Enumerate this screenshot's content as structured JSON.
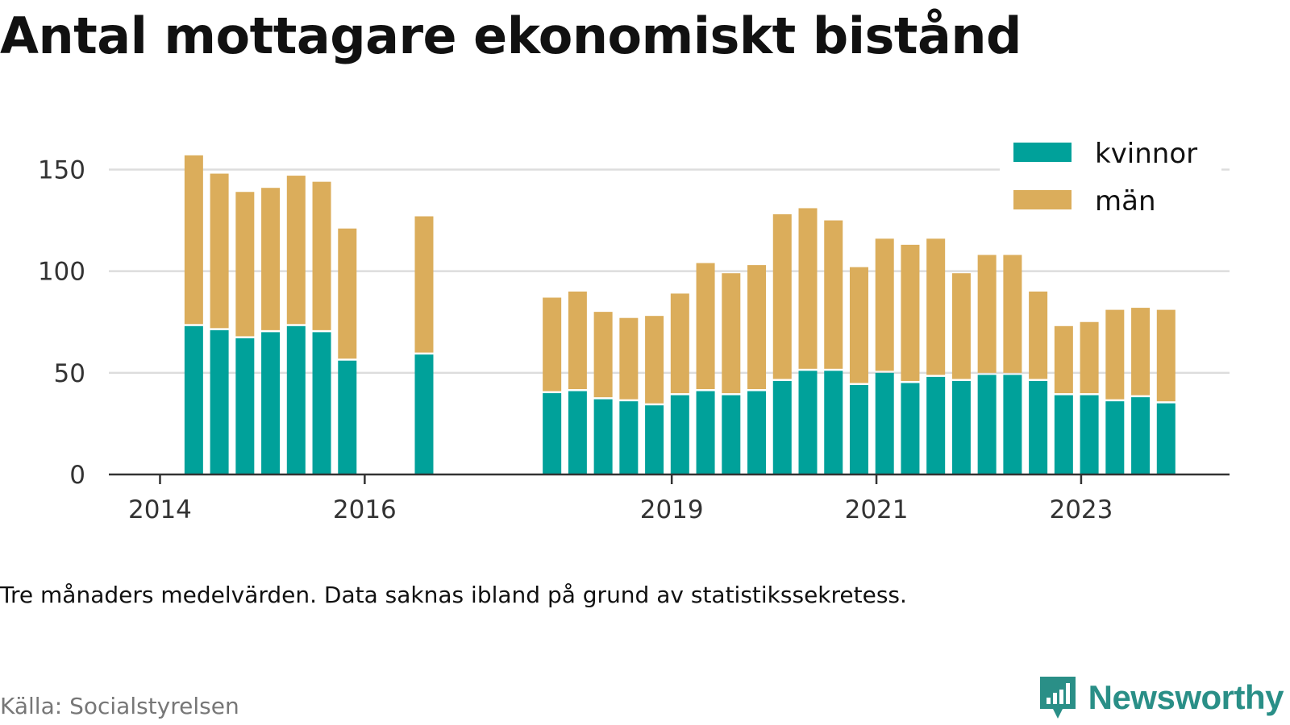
{
  "title": "Antal mottagare ekonomiskt bistånd",
  "note": "Tre månaders medelvärden. Data saknas ibland på grund av statistikssekretess.",
  "source": "Källa: Socialstyrelsen",
  "brand": "Newsworthy",
  "colors": {
    "kvinnor": "#00a19a",
    "man": "#dbad5b",
    "grid": "#dddddd",
    "axis": "#333333",
    "brand": "#2a8f87"
  },
  "chart_data": {
    "type": "bar",
    "stacked": true,
    "title": "Antal mottagare ekonomiskt bistånd",
    "xlabel": "",
    "ylabel": "",
    "ylim": [
      0,
      160
    ],
    "y_ticks": [
      0,
      50,
      100,
      150
    ],
    "x_ticks": [
      "2014",
      "2016",
      "2019",
      "2021",
      "2023"
    ],
    "x_tick_positions": [
      2014.0,
      2016.0,
      2019.0,
      2021.0,
      2023.0
    ],
    "x_range": [
      2013.5,
      2024.45
    ],
    "legend_position": "top-right",
    "x": [
      2014.33,
      2014.58,
      2014.83,
      2015.08,
      2015.33,
      2015.58,
      2015.83,
      2016.58,
      2017.83,
      2018.08,
      2018.33,
      2018.58,
      2018.83,
      2019.08,
      2019.33,
      2019.58,
      2019.83,
      2020.08,
      2020.33,
      2020.58,
      2020.83,
      2021.08,
      2021.33,
      2021.58,
      2021.83,
      2022.08,
      2022.33,
      2022.58,
      2022.83,
      2023.08,
      2023.33,
      2023.58,
      2023.83
    ],
    "series": [
      {
        "name": "kvinnor",
        "values": [
          73,
          71,
          67,
          70,
          73,
          70,
          56,
          59,
          40,
          41,
          37,
          36,
          34,
          39,
          41,
          39,
          41,
          46,
          51,
          51,
          44,
          50,
          45,
          48,
          46,
          49,
          49,
          46,
          39,
          39,
          36,
          38,
          35
        ]
      },
      {
        "name": "män",
        "values": [
          84,
          77,
          72,
          71,
          74,
          74,
          65,
          68,
          47,
          49,
          43,
          41,
          44,
          50,
          63,
          60,
          62,
          82,
          80,
          74,
          58,
          66,
          68,
          68,
          53,
          59,
          59,
          44,
          34,
          36,
          45,
          44,
          46
        ]
      }
    ]
  }
}
